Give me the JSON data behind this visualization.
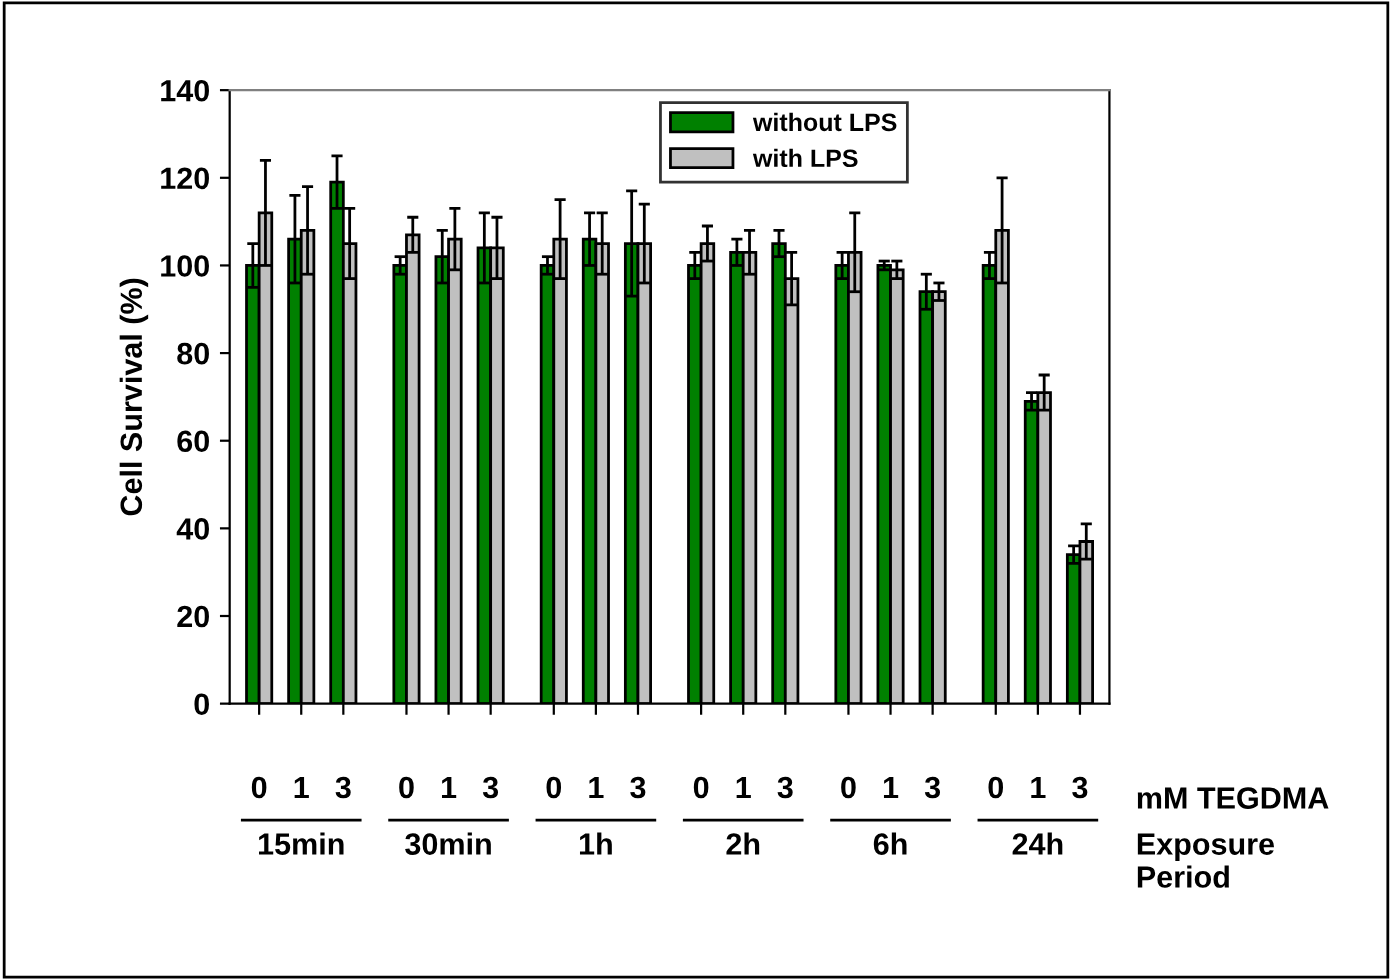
{
  "chart_data": {
    "type": "bar",
    "ylabel": "Cell Survival (%)",
    "categories": [
      "0",
      "1",
      "3",
      "0",
      "1",
      "3",
      "0",
      "1",
      "3",
      "0",
      "1",
      "3",
      "0",
      "1",
      "3",
      "0",
      "1",
      "3"
    ],
    "series": [
      {
        "name": "without LPS",
        "color": "#008000",
        "values": [
          100,
          106,
          119,
          100,
          102,
          104,
          100,
          106,
          105,
          100,
          103,
          105,
          100,
          100,
          94,
          100,
          69,
          34
        ],
        "errors": [
          5,
          10,
          6,
          2,
          6,
          8,
          2,
          6,
          12,
          3,
          3,
          3,
          3,
          1,
          4,
          3,
          2,
          2
        ]
      },
      {
        "name": "with LPS",
        "color": "#c0c0c0",
        "values": [
          112,
          108,
          105,
          107,
          106,
          104,
          106,
          105,
          105,
          105,
          103,
          97,
          103,
          99,
          94,
          108,
          71,
          37
        ],
        "errors": [
          12,
          10,
          8,
          4,
          7,
          7,
          9,
          7,
          9,
          4,
          5,
          6,
          9,
          2,
          2,
          12,
          4,
          4
        ]
      }
    ],
    "ylim": [
      0,
      140
    ],
    "yticks": [
      0,
      20,
      40,
      60,
      80,
      100,
      120,
      140
    ],
    "legend": "top right",
    "annotations": [
      "15min",
      "30min",
      "1h",
      "2h",
      "6h",
      "24h",
      "mM TEGDMA",
      "Exposure\nPeriod"
    ]
  }
}
